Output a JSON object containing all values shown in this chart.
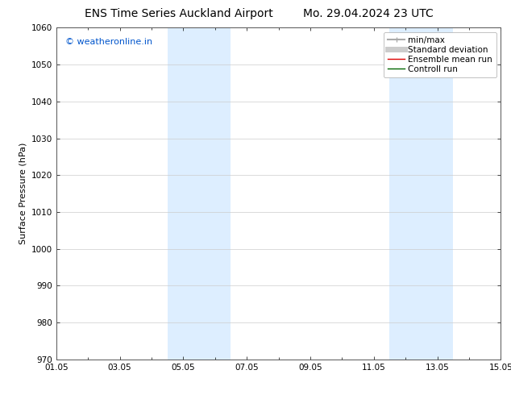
{
  "title_left": "ENS Time Series Auckland Airport",
  "title_right": "Mo. 29.04.2024 23 UTC",
  "ylabel": "Surface Pressure (hPa)",
  "ylim": [
    970,
    1060
  ],
  "yticks": [
    970,
    980,
    990,
    1000,
    1010,
    1020,
    1030,
    1040,
    1050,
    1060
  ],
  "xlim": [
    0,
    14
  ],
  "xtick_labels": [
    "01.05",
    "03.05",
    "05.05",
    "07.05",
    "09.05",
    "11.05",
    "13.05",
    "15.05"
  ],
  "xtick_positions": [
    0,
    2,
    4,
    6,
    8,
    10,
    12,
    14
  ],
  "minor_xtick_positions": [
    1,
    3,
    5,
    7,
    9,
    11,
    13
  ],
  "watermark": "© weatheronline.in",
  "watermark_color": "#0055cc",
  "shaded_regions": [
    {
      "start": 3.5,
      "end": 4.5
    },
    {
      "start": 4.5,
      "end": 5.5
    },
    {
      "start": 10.5,
      "end": 11.5
    },
    {
      "start": 11.5,
      "end": 12.5
    }
  ],
  "shaded_color": "#ddeeff",
  "background_color": "#ffffff",
  "legend_entries": [
    {
      "label": "min/max",
      "color": "#aaaaaa",
      "lw": 1.5,
      "type": "errorbar"
    },
    {
      "label": "Standard deviation",
      "color": "#cccccc",
      "lw": 5,
      "type": "line"
    },
    {
      "label": "Ensemble mean run",
      "color": "#dd0000",
      "lw": 1,
      "type": "line"
    },
    {
      "label": "Controll run",
      "color": "#006600",
      "lw": 1,
      "type": "line"
    }
  ],
  "title_fontsize": 10,
  "axis_label_fontsize": 8,
  "tick_fontsize": 7.5,
  "legend_fontsize": 7.5
}
